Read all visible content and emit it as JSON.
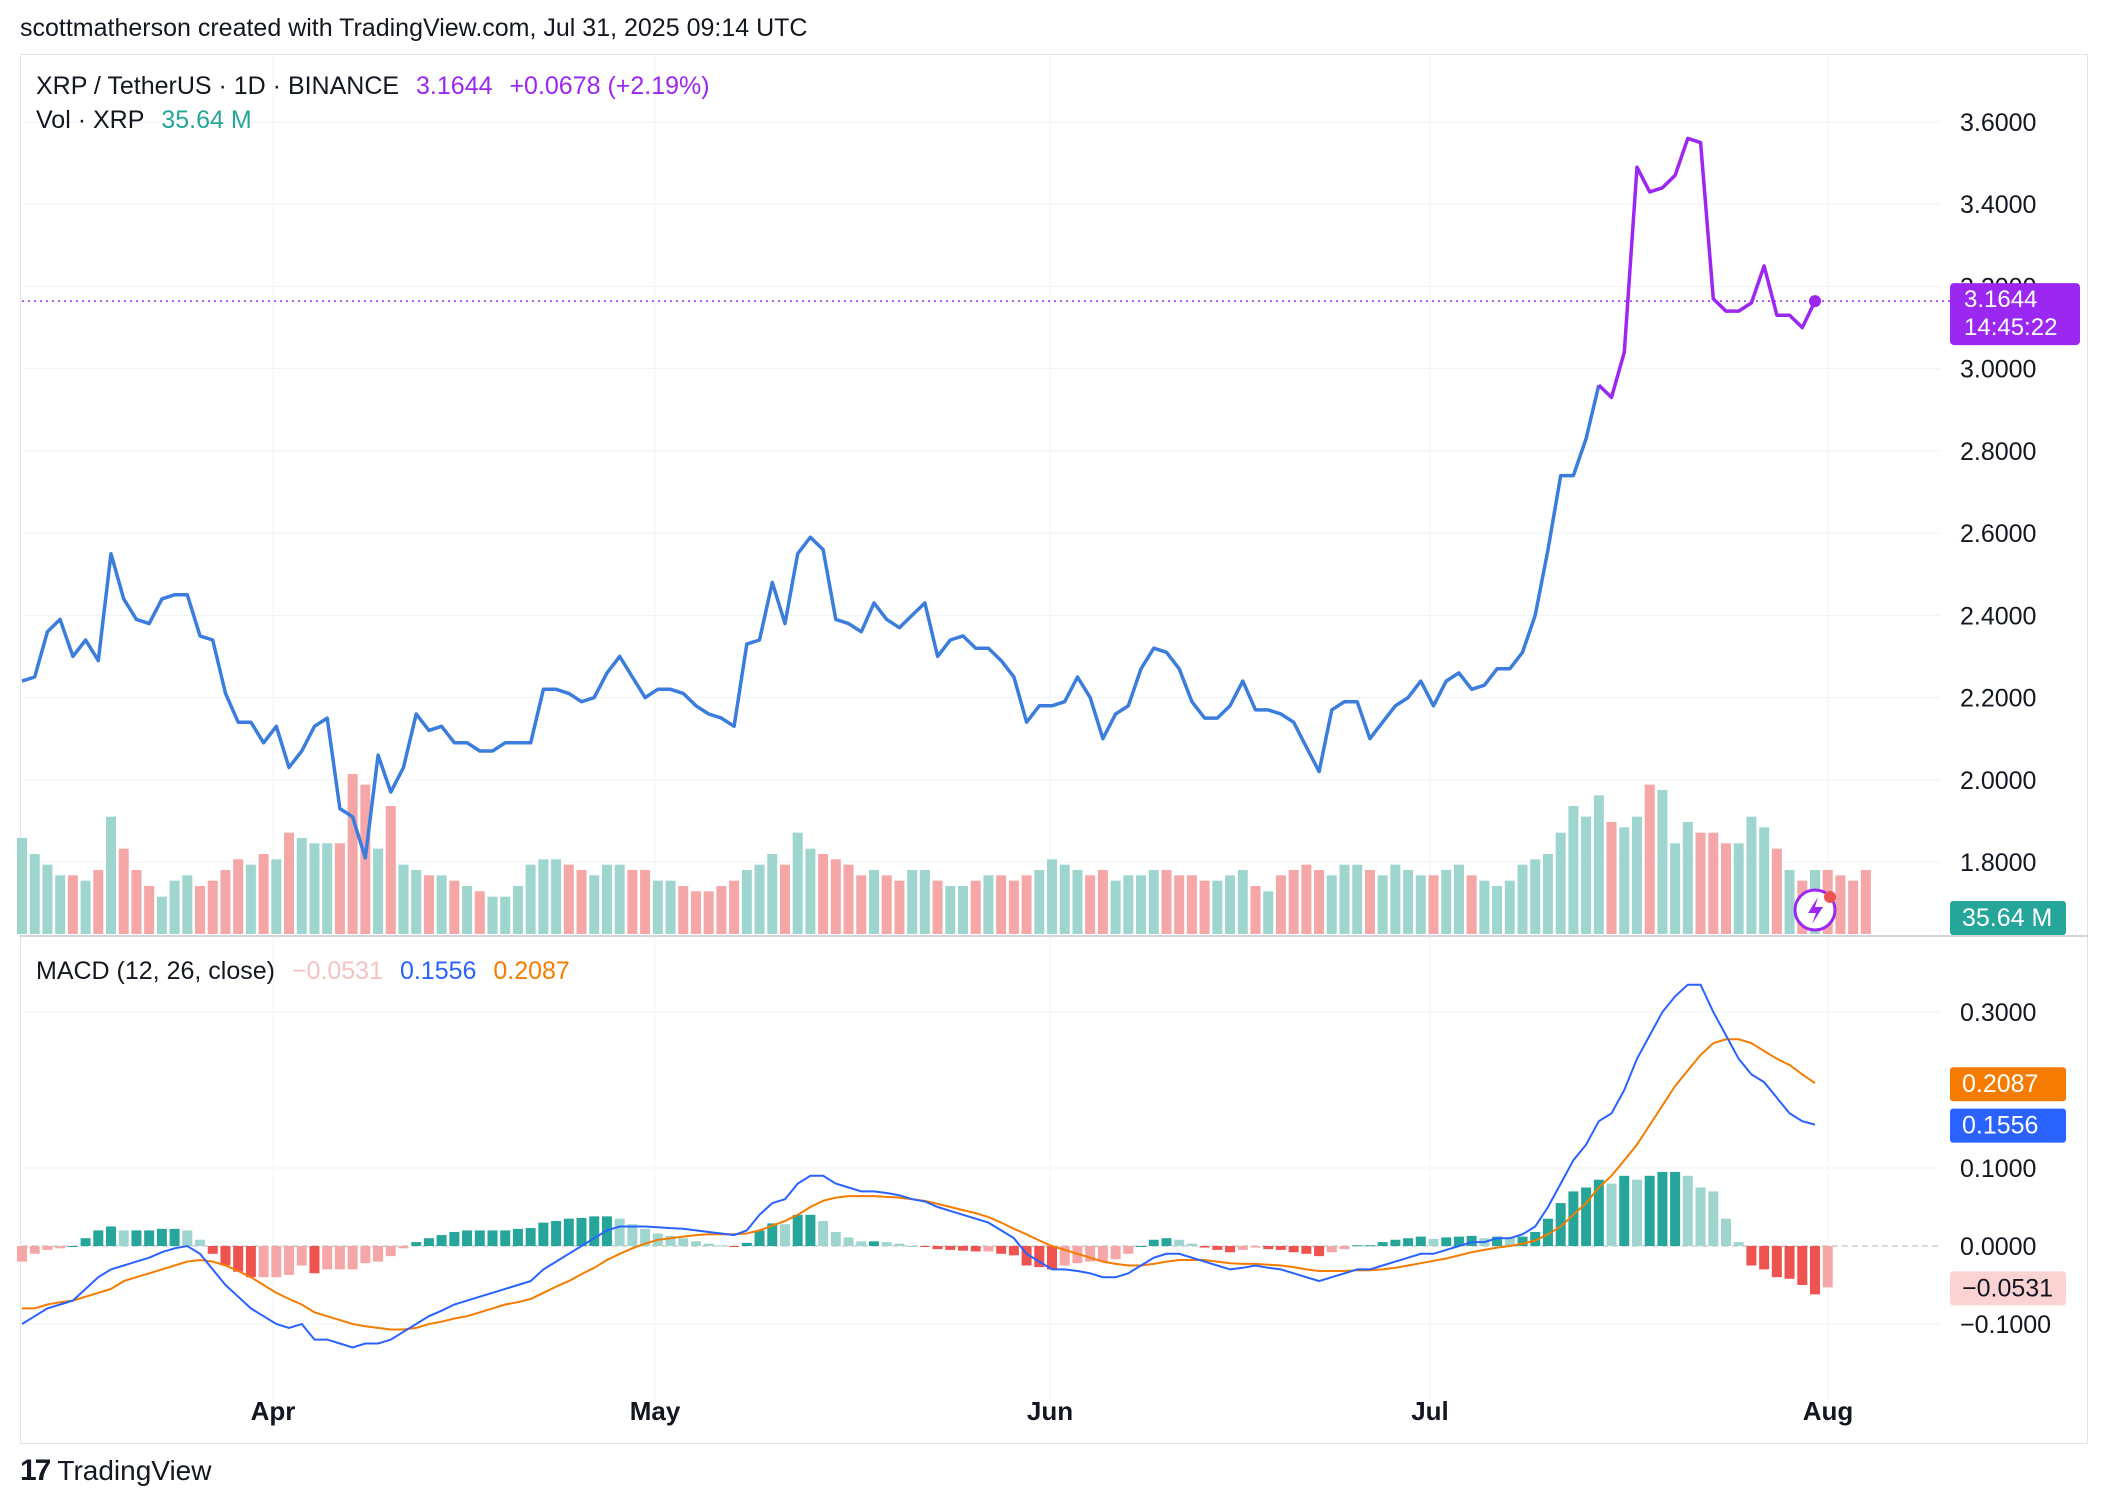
{
  "header": {
    "text": "scottmatherson created with TradingView.com, Jul 31, 2025 09:14 UTC"
  },
  "footer": {
    "brand": "TradingView",
    "logo_text": "17"
  },
  "legend": {
    "symbol": "XRP / TetherUS · 1D · BINANCE",
    "price": "3.1644",
    "change": "+0.0678 (+2.19%)",
    "vol_label": "Vol · XRP",
    "vol_value": "35.64 M",
    "macd_label": "MACD (12, 26, close)",
    "macd_hist": "−0.0531",
    "macd_line": "0.1556",
    "macd_signal": "0.2087"
  },
  "price_badge": {
    "price": "3.1644",
    "countdown": "14:45:22"
  },
  "vol_badge": "35.64 M",
  "colors": {
    "up": "#26a69a",
    "up_light": "#9fd5cf",
    "down": "#ef5350",
    "down_light": "#f5a6a6",
    "price_line": "#3b7ddd",
    "price_line_recent": "#9c27f0",
    "macd": "#2962ff",
    "signal": "#f57c00"
  },
  "chart_data": [
    {
      "type": "line",
      "title": "XRP / TetherUS · 1D · BINANCE",
      "y_ticks": [
        "3.6000",
        "3.4000",
        "3.2000",
        "3.0000",
        "2.8000",
        "2.6000",
        "2.4000",
        "2.2000",
        "2.0000",
        "1.8000"
      ],
      "x_ticks": [
        "Apr",
        "May",
        "Jun",
        "Jul",
        "Aug"
      ],
      "ylim": [
        1.83,
        3.6
      ],
      "x_start": "2025-03-11",
      "grid": true,
      "series": [
        {
          "values": [
            2.24,
            2.25,
            2.36,
            2.39,
            2.3,
            2.34,
            2.29,
            2.55,
            2.44,
            2.39,
            2.38,
            2.44,
            2.45,
            2.45,
            2.35,
            2.34,
            2.21,
            2.14,
            2.14,
            2.09,
            2.13,
            2.03,
            2.07,
            2.13,
            2.15,
            1.93,
            1.91,
            1.81,
            2.06,
            1.97,
            2.03,
            2.16,
            2.12,
            2.13,
            2.09,
            2.09,
            2.07,
            2.07,
            2.09,
            2.09,
            2.09,
            2.22,
            2.22,
            2.21,
            2.19,
            2.2,
            2.26,
            2.3,
            2.25,
            2.2,
            2.22,
            2.22,
            2.21,
            2.18,
            2.16,
            2.15,
            2.13,
            2.33,
            2.34,
            2.48,
            2.38,
            2.55,
            2.59,
            2.56,
            2.39,
            2.38,
            2.36,
            2.43,
            2.39,
            2.37,
            2.4,
            2.43,
            2.3,
            2.34,
            2.35,
            2.32,
            2.32,
            2.29,
            2.25,
            2.14,
            2.18,
            2.18,
            2.19,
            2.25,
            2.2,
            2.1,
            2.16,
            2.18,
            2.27,
            2.32,
            2.31,
            2.27,
            2.19,
            2.15,
            2.15,
            2.18,
            2.24,
            2.17,
            2.17,
            2.16,
            2.14,
            2.08,
            2.02,
            2.17,
            2.19,
            2.19,
            2.1,
            2.14,
            2.18,
            2.2,
            2.24,
            2.18,
            2.24,
            2.26,
            2.22,
            2.23,
            2.27,
            2.27,
            2.31,
            2.4,
            2.56,
            2.74,
            2.74,
            2.83,
            2.96,
            2.93,
            3.04,
            3.49,
            3.43,
            3.44,
            3.47,
            3.56,
            3.55,
            3.17,
            3.14,
            3.14,
            3.16,
            3.25,
            3.13,
            3.13,
            3.1,
            3.1644
          ]
        }
      ]
    },
    {
      "type": "bar",
      "title": "Vol · XRP",
      "note": "volume bars, relative heights",
      "values": [
        18,
        15,
        13,
        11,
        11,
        10,
        12,
        22,
        16,
        12,
        9,
        7,
        10,
        11,
        9,
        10,
        12,
        14,
        13,
        15,
        14,
        19,
        18,
        17,
        17,
        17,
        30,
        28,
        16,
        24,
        13,
        12,
        11,
        11,
        10,
        9,
        8,
        7,
        7,
        9,
        13,
        14,
        14,
        13,
        12,
        11,
        13,
        13,
        12,
        12,
        10,
        10,
        9,
        8,
        8,
        9,
        10,
        12,
        13,
        15,
        13,
        19,
        16,
        15,
        14,
        13,
        11,
        12,
        11,
        10,
        12,
        12,
        10,
        9,
        9,
        10,
        11,
        11,
        10,
        11,
        12,
        14,
        13,
        12,
        11,
        12,
        10,
        11,
        11,
        12,
        12,
        11,
        11,
        10,
        10,
        11,
        12,
        9,
        8,
        11,
        12,
        13,
        12,
        11,
        13,
        13,
        12,
        11,
        13,
        12,
        11,
        11,
        12,
        13,
        11,
        10,
        9,
        10,
        13,
        14,
        15,
        19,
        24,
        22,
        26,
        21,
        20,
        22,
        28,
        27,
        17,
        21,
        19,
        19,
        17,
        17,
        22,
        20,
        16,
        12,
        10,
        12,
        12,
        11,
        10,
        12
      ],
      "directions": "ud",
      "max_volume_scale": 30
    },
    {
      "type": "line",
      "title": "MACD (12, 26, close)",
      "y_ticks": [
        "0.3000",
        "0.1000",
        "0.0000",
        "−0.1000"
      ],
      "ylim": [
        -0.15,
        0.36
      ],
      "series": [
        {
          "name": "MACD",
          "values": [
            -0.1,
            -0.09,
            -0.08,
            -0.075,
            -0.07,
            -0.055,
            -0.04,
            -0.03,
            -0.025,
            -0.02,
            -0.015,
            -0.008,
            -0.003,
            0.0,
            -0.01,
            -0.03,
            -0.05,
            -0.065,
            -0.08,
            -0.09,
            -0.1,
            -0.105,
            -0.1,
            -0.12,
            -0.12,
            -0.125,
            -0.13,
            -0.125,
            -0.125,
            -0.12,
            -0.11,
            -0.1,
            -0.09,
            -0.083,
            -0.075,
            -0.07,
            -0.065,
            -0.06,
            -0.055,
            -0.05,
            -0.045,
            -0.03,
            -0.02,
            -0.01,
            0.0,
            0.01,
            0.02,
            0.025,
            0.025,
            0.025,
            0.024,
            0.023,
            0.022,
            0.02,
            0.018,
            0.016,
            0.014,
            0.02,
            0.04,
            0.055,
            0.06,
            0.08,
            0.09,
            0.09,
            0.08,
            0.075,
            0.07,
            0.07,
            0.068,
            0.065,
            0.06,
            0.057,
            0.05,
            0.045,
            0.04,
            0.035,
            0.03,
            0.02,
            0.01,
            -0.01,
            -0.02,
            -0.03,
            -0.03,
            -0.032,
            -0.035,
            -0.04,
            -0.04,
            -0.035,
            -0.025,
            -0.015,
            -0.01,
            -0.01,
            -0.015,
            -0.02,
            -0.025,
            -0.03,
            -0.028,
            -0.025,
            -0.028,
            -0.03,
            -0.035,
            -0.04,
            -0.045,
            -0.04,
            -0.035,
            -0.03,
            -0.03,
            -0.025,
            -0.02,
            -0.015,
            -0.01,
            -0.01,
            -0.005,
            0.0,
            0.005,
            0.005,
            0.01,
            0.01,
            0.015,
            0.025,
            0.05,
            0.08,
            0.11,
            0.13,
            0.16,
            0.17,
            0.2,
            0.24,
            0.27,
            0.3,
            0.32,
            0.335,
            0.335,
            0.3,
            0.27,
            0.24,
            0.22,
            0.21,
            0.19,
            0.17,
            0.16,
            0.1556
          ]
        },
        {
          "name": "Signal",
          "values": [
            -0.08,
            -0.08,
            -0.075,
            -0.072,
            -0.07,
            -0.065,
            -0.06,
            -0.055,
            -0.045,
            -0.04,
            -0.035,
            -0.03,
            -0.025,
            -0.02,
            -0.018,
            -0.02,
            -0.025,
            -0.032,
            -0.04,
            -0.05,
            -0.06,
            -0.068,
            -0.075,
            -0.085,
            -0.09,
            -0.095,
            -0.1,
            -0.103,
            -0.105,
            -0.107,
            -0.107,
            -0.105,
            -0.1,
            -0.097,
            -0.093,
            -0.09,
            -0.085,
            -0.08,
            -0.075,
            -0.072,
            -0.068,
            -0.06,
            -0.052,
            -0.045,
            -0.036,
            -0.028,
            -0.018,
            -0.01,
            -0.003,
            0.003,
            0.008,
            0.01,
            0.012,
            0.014,
            0.015,
            0.015,
            0.015,
            0.016,
            0.02,
            0.026,
            0.032,
            0.04,
            0.05,
            0.058,
            0.062,
            0.064,
            0.064,
            0.064,
            0.063,
            0.062,
            0.06,
            0.058,
            0.054,
            0.05,
            0.046,
            0.042,
            0.037,
            0.03,
            0.022,
            0.015,
            0.007,
            0.0,
            -0.005,
            -0.01,
            -0.015,
            -0.02,
            -0.023,
            -0.025,
            -0.025,
            -0.023,
            -0.02,
            -0.018,
            -0.018,
            -0.018,
            -0.02,
            -0.022,
            -0.023,
            -0.023,
            -0.024,
            -0.025,
            -0.027,
            -0.03,
            -0.032,
            -0.032,
            -0.032,
            -0.031,
            -0.031,
            -0.03,
            -0.028,
            -0.025,
            -0.022,
            -0.019,
            -0.016,
            -0.012,
            -0.008,
            -0.005,
            -0.002,
            0.0,
            0.003,
            0.007,
            0.015,
            0.025,
            0.04,
            0.055,
            0.075,
            0.09,
            0.11,
            0.13,
            0.155,
            0.18,
            0.205,
            0.225,
            0.245,
            0.26,
            0.265,
            0.265,
            0.26,
            0.25,
            0.24,
            0.232,
            0.22,
            0.2087
          ]
        },
        {
          "name": "Histogram",
          "values": [
            -0.02,
            -0.01,
            -0.005,
            -0.003,
            0.0,
            0.01,
            0.02,
            0.025,
            0.02,
            0.02,
            0.02,
            0.022,
            0.022,
            0.02,
            0.008,
            -0.01,
            -0.025,
            -0.033,
            -0.04,
            -0.04,
            -0.04,
            -0.037,
            -0.025,
            -0.035,
            -0.03,
            -0.03,
            -0.03,
            -0.022,
            -0.02,
            -0.013,
            -0.003,
            0.005,
            0.01,
            0.014,
            0.018,
            0.02,
            0.02,
            0.02,
            0.02,
            0.022,
            0.023,
            0.03,
            0.032,
            0.035,
            0.036,
            0.038,
            0.038,
            0.035,
            0.028,
            0.022,
            0.016,
            0.013,
            0.01,
            0.006,
            0.003,
            0.001,
            -0.001,
            0.004,
            0.02,
            0.029,
            0.028,
            0.04,
            0.04,
            0.032,
            0.018,
            0.011,
            0.006,
            0.006,
            0.005,
            0.003,
            0.0,
            -0.001,
            -0.004,
            -0.005,
            -0.006,
            -0.007,
            -0.007,
            -0.01,
            -0.012,
            -0.025,
            -0.027,
            -0.03,
            -0.025,
            -0.022,
            -0.02,
            -0.02,
            -0.017,
            -0.01,
            0.0,
            0.008,
            0.01,
            0.008,
            0.003,
            -0.002,
            -0.005,
            -0.008,
            -0.005,
            -0.002,
            -0.004,
            -0.005,
            -0.008,
            -0.01,
            -0.013,
            -0.008,
            -0.004,
            0.001,
            0.001,
            0.005,
            0.008,
            0.01,
            0.012,
            0.009,
            0.011,
            0.012,
            0.013,
            0.01,
            0.012,
            0.01,
            0.012,
            0.018,
            0.035,
            0.055,
            0.07,
            0.075,
            0.085,
            0.08,
            0.09,
            0.085,
            0.09,
            0.095,
            0.095,
            0.09,
            0.075,
            0.07,
            0.035,
            0.005,
            -0.025,
            -0.03,
            -0.04,
            -0.042,
            -0.05,
            -0.062,
            -0.0531
          ]
        }
      ]
    }
  ]
}
